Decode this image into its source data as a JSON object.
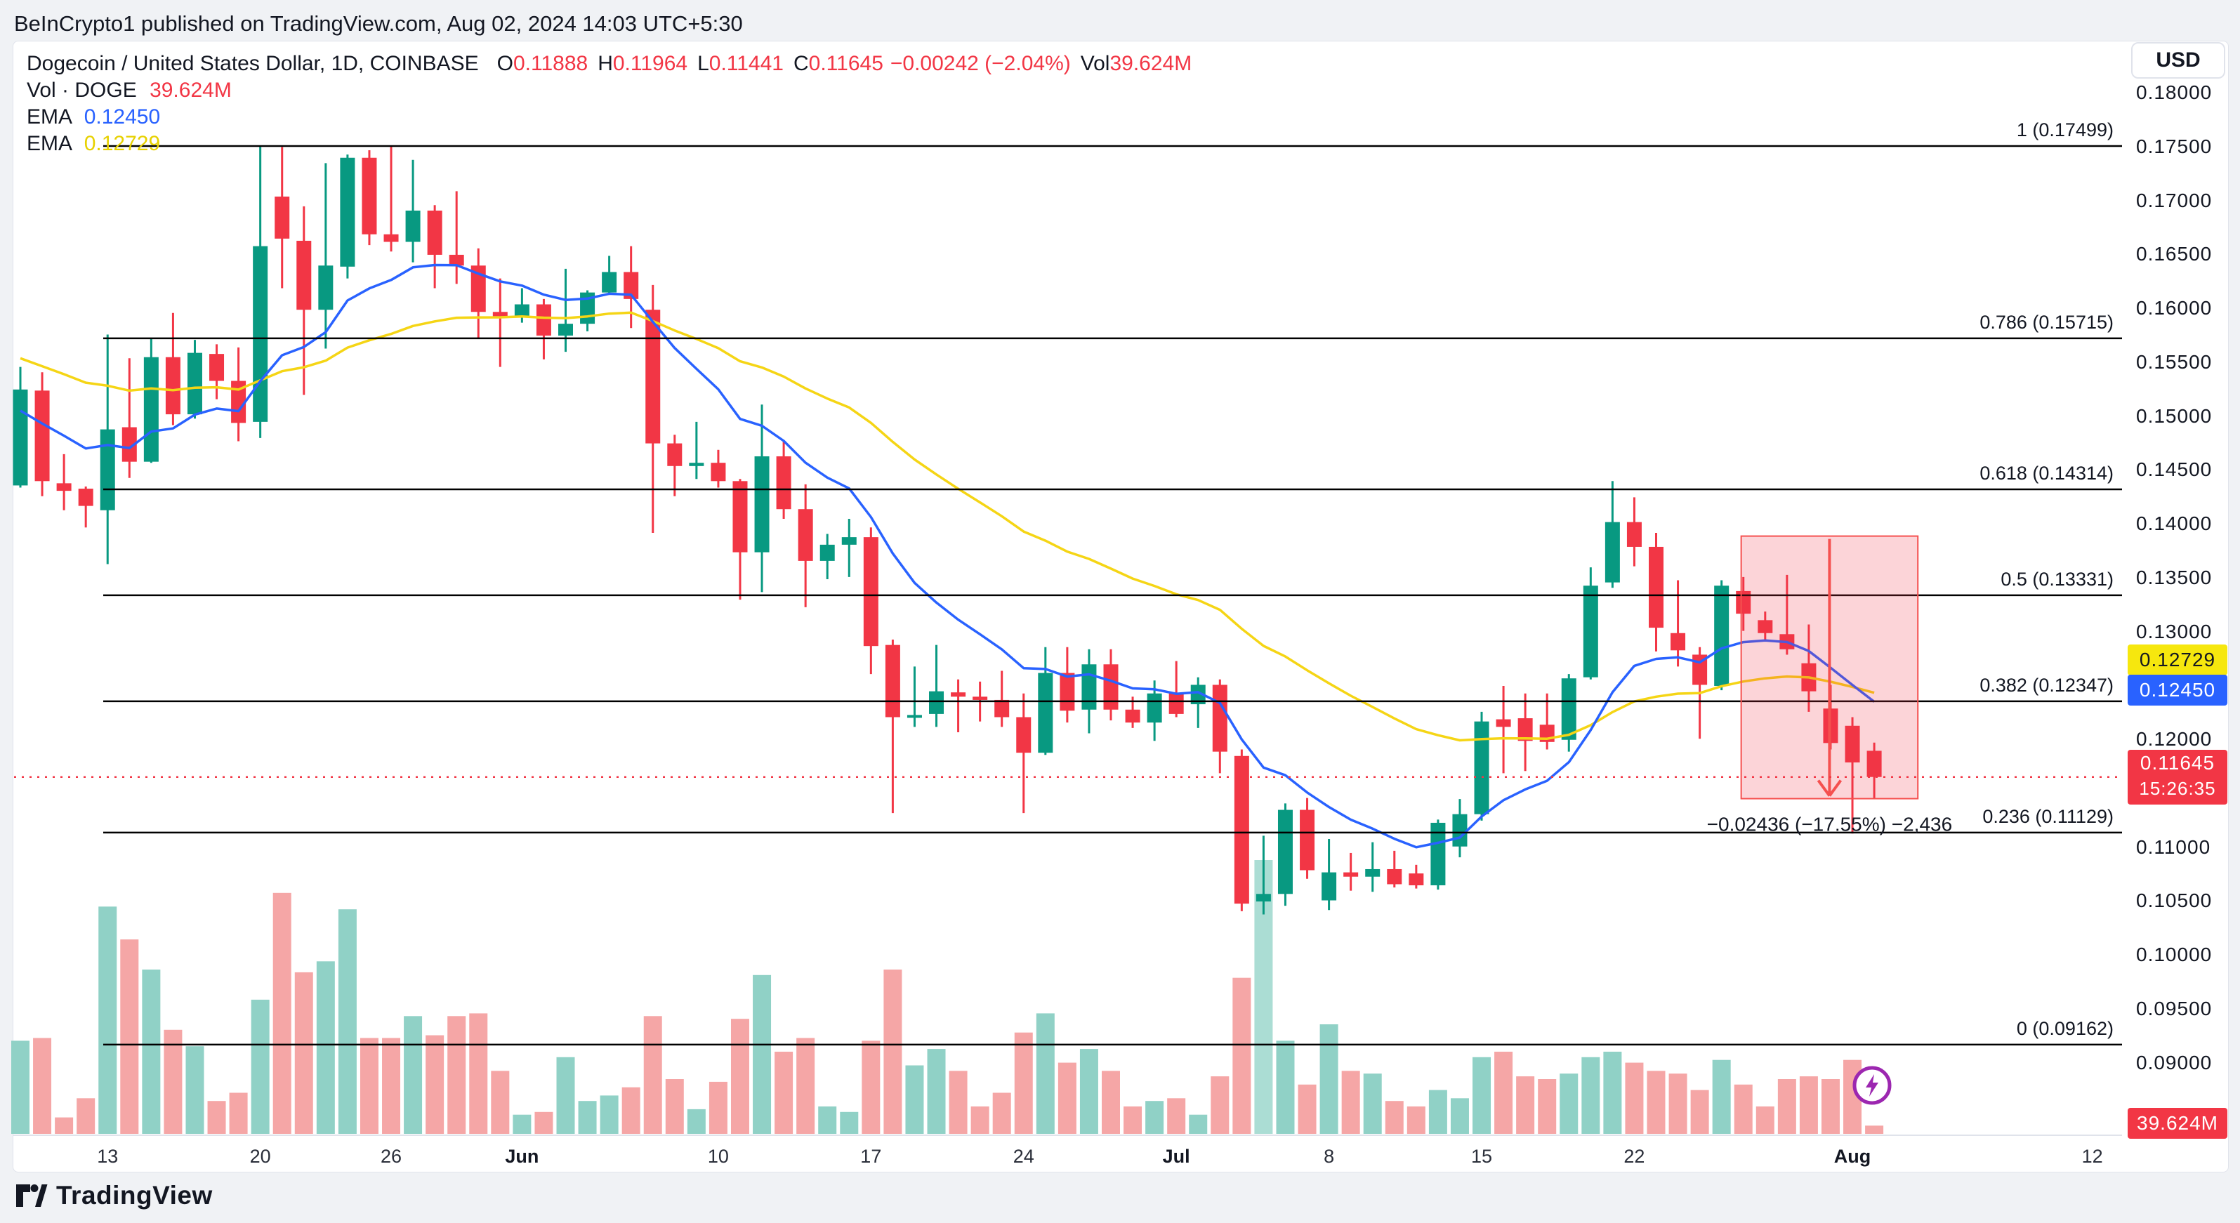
{
  "header": {
    "attribution": "BeInCrypto1 published on TradingView.com, Aug 02, 2024 14:03 UTC+5:30"
  },
  "legend": {
    "symbol": "Dogecoin / United States Dollar, 1D, COINBASE",
    "o_key": "O",
    "o": "0.11888",
    "h_key": "H",
    "h": "0.11964",
    "l_key": "L",
    "l": "0.11441",
    "c_key": "C",
    "c": "0.11645",
    "change": "−0.00242 (−2.04%)",
    "vol_key": "Vol",
    "vol": "39.624M",
    "vol_row_label": "Vol · DOGE",
    "vol_row_value": "39.624M",
    "ema1_label": "EMA",
    "ema1_value": "0.12450",
    "ema2_label": "EMA",
    "ema2_value": "0.12729"
  },
  "axis": {
    "currency": "USD"
  },
  "footer": {
    "logo_text": "TradingView"
  },
  "chart_data": {
    "type": "candlestick",
    "title": "Dogecoin / United States Dollar, 1D, COINBASE",
    "ylabel": "USD",
    "ylim": [
      0.09,
      0.18
    ],
    "grid": false,
    "legend_position": "top-left",
    "colors": {
      "up": "#089981",
      "down": "#f23645",
      "vol_up": "#90d1c6",
      "vol_down": "#f5a6a6",
      "vol_highlight": "#abddd4",
      "ema_fast": "#2962ff",
      "ema_slow": "#f5d515",
      "fib_line": "#000000",
      "box_fill": "rgba(242,54,69,0.21)",
      "box_stroke": "#f5504f",
      "last_price": "#f23645",
      "tag_yellow": "#f6e70e",
      "tag_blue": "#2962ff",
      "tag_red": "#f23645"
    },
    "ema_fast_period": 10,
    "ema_slow_period": 30,
    "ema_fast_seed": 0.15,
    "ema_slow_seed": 0.1555,
    "last_price": 0.11645,
    "y_ticks": [
      "0.18000",
      "0.17500",
      "0.17000",
      "0.16500",
      "0.16000",
      "0.15500",
      "0.15000",
      "0.14500",
      "0.14000",
      "0.13500",
      "0.13000",
      "0.12500",
      "0.12000",
      "0.11500",
      "0.11000",
      "0.10500",
      "0.10000",
      "0.09500",
      "0.09000"
    ],
    "y_tick_values": [
      0.18,
      0.175,
      0.17,
      0.165,
      0.16,
      0.155,
      0.15,
      0.145,
      0.14,
      0.135,
      0.13,
      0.125,
      0.12,
      0.115,
      0.11,
      0.105,
      0.1,
      0.095,
      0.09
    ],
    "x_ticks": [
      {
        "label": "13",
        "bar": 4,
        "bold": false
      },
      {
        "label": "20",
        "bar": 11,
        "bold": false
      },
      {
        "label": "26",
        "bar": 17,
        "bold": false
      },
      {
        "label": "Jun",
        "bar": 23,
        "bold": true
      },
      {
        "label": "10",
        "bar": 32,
        "bold": false
      },
      {
        "label": "17",
        "bar": 39,
        "bold": false
      },
      {
        "label": "24",
        "bar": 46,
        "bold": false
      },
      {
        "label": "Jul",
        "bar": 53,
        "bold": true
      },
      {
        "label": "8",
        "bar": 60,
        "bold": false
      },
      {
        "label": "15",
        "bar": 67,
        "bold": false
      },
      {
        "label": "22",
        "bar": 74,
        "bold": false
      },
      {
        "label": "Aug",
        "bar": 84,
        "bold": true
      },
      {
        "label": "12",
        "bar": 95,
        "bold": false
      }
    ],
    "fib_levels": [
      {
        "label": "1 (0.17499)",
        "price": 0.17499
      },
      {
        "label": "0.786 (0.15715)",
        "price": 0.15715
      },
      {
        "label": "0.618 (0.14314)",
        "price": 0.14314
      },
      {
        "label": "0.5 (0.13331)",
        "price": 0.13331
      },
      {
        "label": "0.382 (0.12347)",
        "price": 0.12347
      },
      {
        "label": "0.236 (0.11129)",
        "price": 0.11129
      },
      {
        "label": "0 (0.09162)",
        "price": 0.09162
      }
    ],
    "range_box": {
      "from_bar": 78.9,
      "to_bar": 87.0,
      "top": 0.1388,
      "bottom": 0.11444,
      "label": "−0.02436 (−17.55%) −2,436"
    },
    "price_tags": [
      {
        "kind": "yellow",
        "text": "0.12729",
        "price": 0.12729
      },
      {
        "kind": "blue",
        "text": "0.12450",
        "price": 0.1245
      },
      {
        "kind": "red",
        "text": "0.11645",
        "sub": "15:26:35",
        "price": 0.11645
      },
      {
        "kind": "vol",
        "text": "39.624M"
      }
    ],
    "highlight_volume_bar": 57,
    "candles": [
      [
        0.1435,
        0.1545,
        0.1433,
        0.1524,
        0.34
      ],
      [
        0.1523,
        0.154,
        0.1425,
        0.1439,
        0.35
      ],
      [
        0.1437,
        0.1464,
        0.1412,
        0.143,
        0.06
      ],
      [
        0.1432,
        0.1434,
        0.1396,
        0.1416,
        0.13
      ],
      [
        0.1412,
        0.1575,
        0.1362,
        0.1487,
        0.83
      ],
      [
        0.1489,
        0.1553,
        0.1442,
        0.1457,
        0.71
      ],
      [
        0.1457,
        0.1572,
        0.1456,
        0.1554,
        0.6
      ],
      [
        0.1554,
        0.1595,
        0.1491,
        0.1501,
        0.38
      ],
      [
        0.1501,
        0.157,
        0.1497,
        0.1558,
        0.32
      ],
      [
        0.1557,
        0.1566,
        0.1515,
        0.1532,
        0.12
      ],
      [
        0.1532,
        0.1563,
        0.1476,
        0.1493,
        0.15
      ],
      [
        0.1494,
        0.175,
        0.1479,
        0.1657,
        0.49
      ],
      [
        0.1703,
        0.1749,
        0.1618,
        0.1664,
        0.88
      ],
      [
        0.1662,
        0.1694,
        0.1519,
        0.1598,
        0.59
      ],
      [
        0.1598,
        0.1734,
        0.1562,
        0.1639,
        0.63
      ],
      [
        0.1638,
        0.1742,
        0.1627,
        0.1739,
        0.82
      ],
      [
        0.1739,
        0.1746,
        0.1658,
        0.1668,
        0.35
      ],
      [
        0.1668,
        0.175,
        0.1652,
        0.1661,
        0.35
      ],
      [
        0.1661,
        0.1737,
        0.1642,
        0.169,
        0.43
      ],
      [
        0.169,
        0.1695,
        0.1618,
        0.1649,
        0.36
      ],
      [
        0.1649,
        0.1708,
        0.1622,
        0.1639,
        0.43
      ],
      [
        0.1639,
        0.1655,
        0.1571,
        0.1596,
        0.44
      ],
      [
        0.1596,
        0.1627,
        0.1545,
        0.1592,
        0.23
      ],
      [
        0.1592,
        0.1618,
        0.1586,
        0.1603,
        0.07
      ],
      [
        0.1603,
        0.1608,
        0.1552,
        0.1574,
        0.08
      ],
      [
        0.1574,
        0.1636,
        0.1559,
        0.1585,
        0.28
      ],
      [
        0.1585,
        0.1616,
        0.1578,
        0.1614,
        0.12
      ],
      [
        0.1614,
        0.1648,
        0.1613,
        0.1633,
        0.14
      ],
      [
        0.1633,
        0.1657,
        0.1581,
        0.1608,
        0.17
      ],
      [
        0.1598,
        0.1621,
        0.1391,
        0.1474,
        0.43
      ],
      [
        0.1474,
        0.1482,
        0.1425,
        0.1453,
        0.2
      ],
      [
        0.1453,
        0.1494,
        0.1441,
        0.1456,
        0.09
      ],
      [
        0.1456,
        0.1468,
        0.1433,
        0.1439,
        0.19
      ],
      [
        0.1439,
        0.1441,
        0.1329,
        0.1373,
        0.42
      ],
      [
        0.1373,
        0.151,
        0.1336,
        0.1462,
        0.58
      ],
      [
        0.1462,
        0.1476,
        0.1404,
        0.1413,
        0.3
      ],
      [
        0.1413,
        0.1436,
        0.1322,
        0.1365,
        0.35
      ],
      [
        0.1365,
        0.139,
        0.1348,
        0.138,
        0.1
      ],
      [
        0.138,
        0.1404,
        0.135,
        0.1387,
        0.08
      ],
      [
        0.1387,
        0.1396,
        0.126,
        0.1286,
        0.34
      ],
      [
        0.1287,
        0.1292,
        0.1131,
        0.122,
        0.6
      ],
      [
        0.122,
        0.1267,
        0.1211,
        0.1222,
        0.25
      ],
      [
        0.1223,
        0.1287,
        0.1211,
        0.1244,
        0.31
      ],
      [
        0.1243,
        0.1255,
        0.1206,
        0.1239,
        0.23
      ],
      [
        0.1239,
        0.1253,
        0.1216,
        0.1236,
        0.1
      ],
      [
        0.1236,
        0.1263,
        0.1211,
        0.122,
        0.15
      ],
      [
        0.122,
        0.1242,
        0.1131,
        0.1187,
        0.37
      ],
      [
        0.1187,
        0.1285,
        0.1185,
        0.1261,
        0.44
      ],
      [
        0.1261,
        0.1285,
        0.1215,
        0.1226,
        0.26
      ],
      [
        0.1227,
        0.1283,
        0.1205,
        0.1269,
        0.31
      ],
      [
        0.1269,
        0.1283,
        0.1217,
        0.1227,
        0.23
      ],
      [
        0.1227,
        0.1239,
        0.121,
        0.1215,
        0.1
      ],
      [
        0.1215,
        0.1254,
        0.1198,
        0.1242,
        0.12
      ],
      [
        0.1242,
        0.1272,
        0.122,
        0.1223,
        0.13
      ],
      [
        0.1232,
        0.1257,
        0.121,
        0.125,
        0.07
      ],
      [
        0.125,
        0.1255,
        0.1168,
        0.1188,
        0.21
      ],
      [
        0.1184,
        0.119,
        0.104,
        0.1047,
        0.57
      ],
      [
        0.1049,
        0.111,
        0.1037,
        0.1056,
        1.0
      ],
      [
        0.1056,
        0.114,
        0.1045,
        0.1134,
        0.34
      ],
      [
        0.1134,
        0.1145,
        0.107,
        0.1078,
        0.18
      ],
      [
        0.105,
        0.1107,
        0.1041,
        0.1076,
        0.4
      ],
      [
        0.1076,
        0.1094,
        0.1059,
        0.1072,
        0.23
      ],
      [
        0.1072,
        0.1104,
        0.1058,
        0.1079,
        0.22
      ],
      [
        0.1079,
        0.1096,
        0.1062,
        0.1065,
        0.12
      ],
      [
        0.1075,
        0.1083,
        0.1061,
        0.1064,
        0.1
      ],
      [
        0.1064,
        0.1125,
        0.106,
        0.1122,
        0.16
      ],
      [
        0.11,
        0.1144,
        0.109,
        0.113,
        0.13
      ],
      [
        0.113,
        0.1225,
        0.1124,
        0.1216,
        0.28
      ],
      [
        0.1218,
        0.1249,
        0.1168,
        0.1211,
        0.3
      ],
      [
        0.1219,
        0.1242,
        0.117,
        0.1198,
        0.21
      ],
      [
        0.1213,
        0.1242,
        0.119,
        0.1197,
        0.2
      ],
      [
        0.1199,
        0.126,
        0.1188,
        0.1256,
        0.22
      ],
      [
        0.1257,
        0.1359,
        0.1255,
        0.1342,
        0.28
      ],
      [
        0.1345,
        0.1439,
        0.134,
        0.1401,
        0.3
      ],
      [
        0.1401,
        0.1424,
        0.136,
        0.1378,
        0.26
      ],
      [
        0.1378,
        0.1391,
        0.1281,
        0.1303,
        0.23
      ],
      [
        0.1298,
        0.1347,
        0.1267,
        0.1282,
        0.22
      ],
      [
        0.1278,
        0.1285,
        0.12,
        0.125,
        0.16
      ],
      [
        0.1249,
        0.1347,
        0.1245,
        0.1342,
        0.27
      ],
      [
        0.1337,
        0.135,
        0.13,
        0.1316,
        0.18
      ],
      [
        0.131,
        0.1318,
        0.1291,
        0.1298,
        0.1
      ],
      [
        0.1297,
        0.1352,
        0.1278,
        0.1283,
        0.2
      ],
      [
        0.127,
        0.1306,
        0.1225,
        0.1244,
        0.21
      ],
      [
        0.1228,
        0.125,
        0.119,
        0.1196,
        0.2
      ],
      [
        0.1212,
        0.122,
        0.1112,
        0.1178,
        0.27
      ],
      [
        0.11888,
        0.11964,
        0.11441,
        0.11645,
        0.03
      ]
    ]
  }
}
